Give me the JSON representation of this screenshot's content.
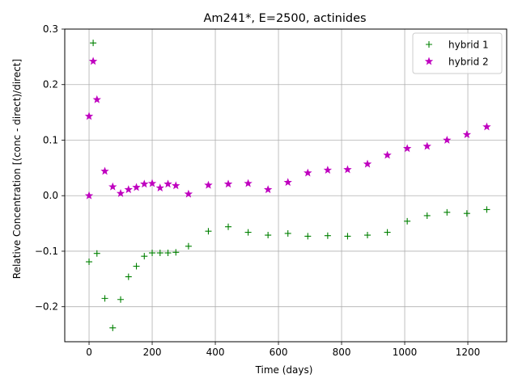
{
  "chart_data": {
    "type": "scatter",
    "title": "Am241*, E=2500, actinides",
    "xlabel": "Time (days)",
    "ylabel": "Relative Concentration [(conc - direct)/direct]",
    "xlim": [
      -77,
      1323
    ],
    "ylim": [
      -0.263,
      0.3
    ],
    "xticks": [
      0,
      200,
      400,
      600,
      800,
      1000,
      1200
    ],
    "xtick_labels": [
      "0",
      "200",
      "400",
      "600",
      "800",
      "1000",
      "1200"
    ],
    "yticks": [
      -0.2,
      -0.1,
      0.0,
      0.1,
      0.2,
      0.3
    ],
    "ytick_labels": [
      "−0.2",
      "−0.1",
      "0.0",
      "0.1",
      "0.2",
      "0.3"
    ],
    "grid": true,
    "legend_position": "top-right",
    "series": [
      {
        "name": "hybrid 1",
        "marker": "+",
        "color": "#008000",
        "x": [
          0,
          13,
          25,
          50,
          75,
          100,
          125,
          150,
          175,
          200,
          225,
          250,
          275,
          315,
          378,
          441,
          504,
          567,
          630,
          693,
          756,
          819,
          882,
          945,
          1008,
          1071,
          1134,
          1197,
          1260
        ],
        "y": [
          -0.119,
          0.275,
          -0.104,
          -0.185,
          -0.238,
          -0.187,
          -0.146,
          -0.127,
          -0.109,
          -0.103,
          -0.103,
          -0.103,
          -0.102,
          -0.091,
          -0.064,
          -0.056,
          -0.066,
          -0.071,
          -0.068,
          -0.073,
          -0.072,
          -0.073,
          -0.071,
          -0.066,
          -0.046,
          -0.036,
          -0.03,
          -0.032,
          -0.025
        ]
      },
      {
        "name": "hybrid 2",
        "marker": "*",
        "color": "#bf00bf",
        "x": [
          0,
          0,
          13,
          25,
          50,
          75,
          100,
          125,
          150,
          175,
          200,
          225,
          250,
          275,
          315,
          378,
          441,
          504,
          567,
          630,
          693,
          756,
          819,
          882,
          945,
          1008,
          1071,
          1134,
          1197,
          1260
        ],
        "y": [
          0.0,
          0.143,
          0.242,
          0.173,
          0.044,
          0.016,
          0.004,
          0.011,
          0.015,
          0.021,
          0.022,
          0.014,
          0.021,
          0.018,
          0.003,
          0.019,
          0.021,
          0.022,
          0.011,
          0.024,
          0.041,
          0.046,
          0.047,
          0.057,
          0.073,
          0.085,
          0.089,
          0.1,
          0.11,
          0.124
        ]
      }
    ]
  }
}
